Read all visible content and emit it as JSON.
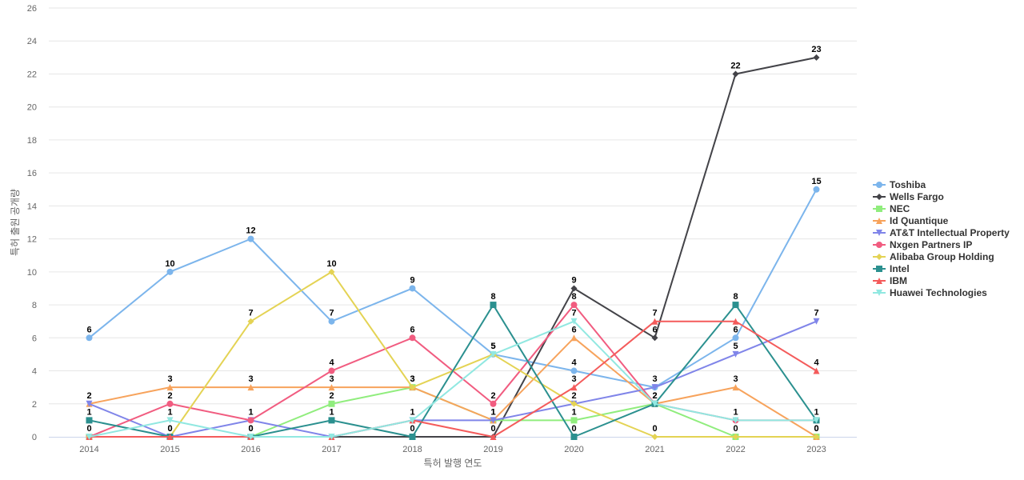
{
  "chart_data": {
    "type": "line",
    "title": "",
    "xlabel": "특허 발행 연도",
    "ylabel": "특허 출원 공개량",
    "categories": [
      "2014",
      "2015",
      "2016",
      "2017",
      "2018",
      "2019",
      "2020",
      "2021",
      "2022",
      "2023"
    ],
    "ylim": [
      0,
      26
    ],
    "yticks": [
      0,
      2,
      4,
      6,
      8,
      10,
      12,
      14,
      16,
      18,
      20,
      22,
      24,
      26
    ],
    "grid": true,
    "legend_position": "right",
    "series": [
      {
        "name": "Toshiba",
        "color": "#7cb5ec",
        "marker": "circle",
        "values": [
          6,
          10,
          12,
          7,
          9,
          5,
          4,
          3,
          6,
          15
        ],
        "labels": [
          6,
          10,
          12,
          7,
          9,
          5,
          4,
          3,
          6,
          15
        ]
      },
      {
        "name": "Wells Fargo",
        "color": "#434348",
        "marker": "diamond",
        "values": [
          0,
          0,
          0,
          0,
          0,
          0,
          9,
          6,
          22,
          23
        ],
        "labels": [
          null,
          null,
          null,
          null,
          null,
          null,
          9,
          6,
          22,
          23
        ]
      },
      {
        "name": "NEC",
        "color": "#90ed7d",
        "marker": "square",
        "values": [
          0,
          0,
          0,
          2,
          3,
          1,
          1,
          2,
          0,
          0
        ],
        "labels": [
          0,
          0,
          0,
          2,
          3,
          1,
          1,
          2,
          0,
          0
        ]
      },
      {
        "name": "Id Quantique",
        "color": "#f7a35c",
        "marker": "triangle",
        "values": [
          2,
          3,
          3,
          3,
          3,
          1,
          6,
          2,
          3,
          0
        ],
        "labels": [
          2,
          3,
          3,
          3,
          3,
          1,
          6,
          2,
          3,
          0
        ]
      },
      {
        "name": "AT&T Intellectual Property",
        "color": "#8085e9",
        "marker": "triangle-down",
        "values": [
          2,
          0,
          1,
          0,
          1,
          1,
          2,
          3,
          5,
          7
        ],
        "labels": [
          null,
          null,
          null,
          null,
          null,
          null,
          null,
          null,
          5,
          7
        ]
      },
      {
        "name": "Nxgen Partners IP",
        "color": "#f15c80",
        "marker": "circle",
        "values": [
          0,
          2,
          1,
          4,
          6,
          2,
          8,
          2,
          1,
          1
        ],
        "labels": [
          null,
          2,
          1,
          4,
          6,
          2,
          8,
          null,
          1,
          null
        ]
      },
      {
        "name": "Alibaba Group Holding",
        "color": "#e4d354",
        "marker": "diamond",
        "values": [
          0,
          0,
          7,
          10,
          3,
          5,
          2,
          0,
          0,
          0
        ],
        "labels": [
          null,
          null,
          7,
          10,
          null,
          5,
          2,
          0,
          null,
          null
        ]
      },
      {
        "name": "Intel",
        "color": "#2b908f",
        "marker": "square",
        "values": [
          1,
          0,
          0,
          1,
          0,
          8,
          0,
          2,
          8,
          1
        ],
        "labels": [
          1,
          0,
          0,
          1,
          0,
          8,
          0,
          null,
          8,
          1
        ]
      },
      {
        "name": "IBM",
        "color": "#f45b5b",
        "marker": "triangle",
        "values": [
          0,
          0,
          0,
          0,
          1,
          0,
          3,
          7,
          7,
          4
        ],
        "labels": [
          null,
          null,
          null,
          null,
          null,
          0,
          3,
          7,
          null,
          4
        ]
      },
      {
        "name": "Huawei Technologies",
        "color": "#91e8e1",
        "marker": "triangle-down",
        "values": [
          0,
          1,
          0,
          0,
          1,
          5,
          7,
          2,
          1,
          1
        ],
        "labels": [
          null,
          1,
          null,
          null,
          1,
          null,
          7,
          null,
          null,
          null
        ]
      }
    ]
  }
}
